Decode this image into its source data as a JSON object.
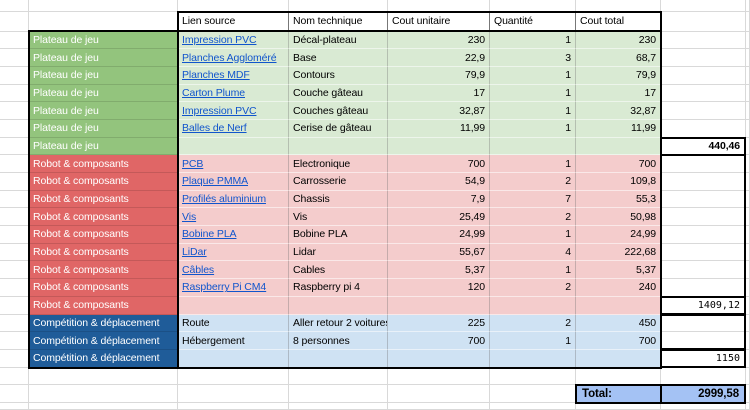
{
  "sheet": {
    "header": {
      "labels": [
        "Lien source",
        "Nom technique",
        "Cout unitaire",
        "Quantité",
        "Cout total"
      ]
    },
    "sections": [
      {
        "name": "Plateau de jeu",
        "category_color": "#93c47d",
        "row_color": "#d9ead3",
        "links": true,
        "rows": [
          {
            "source": "Impression PVC",
            "tech": "Décal-plateau",
            "unit_cost": "230",
            "quantity": "1",
            "total_cost": "230"
          },
          {
            "source": "Planches Aggloméré",
            "tech": "Base",
            "unit_cost": "22,9",
            "quantity": "3",
            "total_cost": "68,7"
          },
          {
            "source": "Planches MDF",
            "tech": "Contours",
            "unit_cost": "79,9",
            "quantity": "1",
            "total_cost": "79,9"
          },
          {
            "source": "Carton Plume",
            "tech": "Couche gâteau",
            "unit_cost": "17",
            "quantity": "1",
            "total_cost": "17"
          },
          {
            "source": "Impression PVC",
            "tech": "Couches gâteau",
            "unit_cost": "32,87",
            "quantity": "1",
            "total_cost": "32,87"
          },
          {
            "source": "Balles de Nerf",
            "tech": "Cerise de gâteau",
            "unit_cost": "11,99",
            "quantity": "1",
            "total_cost": "11,99"
          }
        ],
        "subtotal": "440,46",
        "subtotal_font": "bold"
      },
      {
        "name": "Robot & composants",
        "category_color": "#e06666",
        "row_color": "#f4cccc",
        "links": true,
        "rows": [
          {
            "source": "PCB",
            "tech": "Electronique",
            "unit_cost": "700",
            "quantity": "1",
            "total_cost": "700"
          },
          {
            "source": "Plaque PMMA",
            "tech": "Carrosserie",
            "unit_cost": "54,9",
            "quantity": "2",
            "total_cost": "109,8"
          },
          {
            "source": "Profilés aluminium",
            "tech": "Chassis",
            "unit_cost": "7,9",
            "quantity": "7",
            "total_cost": "55,3"
          },
          {
            "source": "Vis",
            "tech": "Vis",
            "unit_cost": "25,49",
            "quantity": "2",
            "total_cost": "50,98"
          },
          {
            "source": "Bobine PLA",
            "tech": "Bobine PLA",
            "unit_cost": "24,99",
            "quantity": "1",
            "total_cost": "24,99"
          },
          {
            "source": "LiDar",
            "tech": "Lidar",
            "unit_cost": "55,67",
            "quantity": "4",
            "total_cost": "222,68"
          },
          {
            "source": "Câbles",
            "tech": "Cables",
            "unit_cost": "5,37",
            "quantity": "1",
            "total_cost": "5,37"
          },
          {
            "source": "Raspberry Pi CM4",
            "tech": "Raspberry pi 4",
            "unit_cost": "120",
            "quantity": "2",
            "total_cost": "240"
          }
        ],
        "subtotal": "1409,12",
        "subtotal_font": "mono"
      },
      {
        "name": "Compétition & déplacement",
        "category_color": "#1f5c99",
        "row_color": "#cfe2f3",
        "links": false,
        "rows": [
          {
            "source": "Route",
            "tech": "Aller retour 2 voitures",
            "unit_cost": "225",
            "quantity": "2",
            "total_cost": "450"
          },
          {
            "source": "Hébergement",
            "tech": "8 personnes",
            "unit_cost": "700",
            "quantity": "1",
            "total_cost": "700"
          }
        ],
        "subtotal": "1150",
        "subtotal_font": "mono"
      }
    ],
    "total": {
      "label": "Total:",
      "value": "2999,58",
      "bg": "#a4c2f4"
    },
    "colors": {
      "link": "#1155cc",
      "gridline": "#d9d9d9",
      "thick_border": "#000000"
    }
  }
}
